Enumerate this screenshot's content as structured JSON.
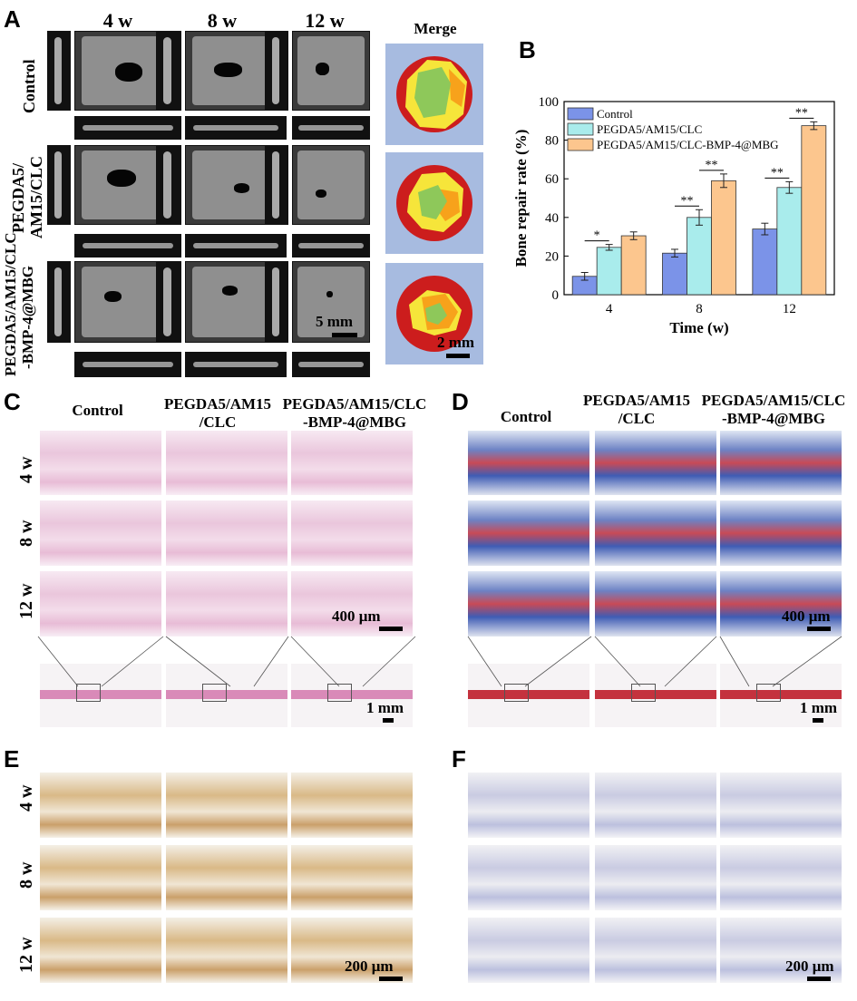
{
  "panels": {
    "A": {
      "letter": "A",
      "columns": [
        "4 w",
        "8 w",
        "12 w"
      ],
      "merge_title": "Merge",
      "rows": [
        "Control",
        "PEGDA5/\nAM15/CLC",
        "PEGDA5/AM15/CLC\n-BMP-4@MBG"
      ],
      "scale_ct": "5 mm",
      "scale_merge": "2 mm"
    },
    "B": {
      "letter": "B"
    },
    "C": {
      "letter": "C",
      "columns": [
        "Control",
        "PEGDA5/AM15\n/CLC",
        "PEGDA5/AM15/CLC\n-BMP-4@MBG"
      ],
      "rows": [
        "4 w",
        "8 w",
        "12 w"
      ],
      "scale_high": "400 μm",
      "scale_low": "1 mm"
    },
    "D": {
      "letter": "D",
      "columns": [
        "Control",
        "PEGDA5/AM15\n/CLC",
        "PEGDA5/AM15/CLC\n-BMP-4@MBG"
      ],
      "scale_high": "400 μm",
      "scale_low": "1 mm"
    },
    "E": {
      "letter": "E",
      "rows": [
        "4 w",
        "8 w",
        "12 w"
      ],
      "scale": "200 μm"
    },
    "F": {
      "letter": "F",
      "scale": "200 μm"
    }
  },
  "colors": {
    "control": "#7b93e8",
    "pegda_clc": "#a9ecec",
    "pegda_clc_bmp": "#fcc68e",
    "merge_bg": "#a7bbe0",
    "merge_red": "#cc1d1d",
    "merge_yellow": "#f6e53a",
    "merge_orange": "#f7a21b",
    "merge_green": "#8ec85a"
  },
  "chart_data": {
    "type": "bar",
    "categories": [
      "4",
      "8",
      "12"
    ],
    "xlabel": "Time (w)",
    "ylabel": "Bone repair rate (%)",
    "ylim": [
      0,
      100
    ],
    "yticks": [
      0,
      20,
      40,
      60,
      80,
      100
    ],
    "legend": "top-left",
    "series": [
      {
        "name": "Control",
        "values": [
          9.5,
          21.5,
          34
        ],
        "errors": [
          2,
          2,
          3
        ],
        "color": "#7b93e8"
      },
      {
        "name": "PEGDA5/AM15/CLC",
        "values": [
          24.5,
          40,
          55.5
        ],
        "errors": [
          1.5,
          4,
          3
        ],
        "color": "#a9ecec"
      },
      {
        "name": "PEGDA5/AM15/CLC-BMP-4@MBG",
        "values": [
          30.5,
          59,
          87.5
        ],
        "errors": [
          2,
          3.5,
          2
        ],
        "color": "#fcc68e"
      }
    ],
    "significance": [
      {
        "group": 0,
        "from": 0,
        "to": 1,
        "label": "*"
      },
      {
        "group": 1,
        "from": 0,
        "to": 1,
        "label": "**"
      },
      {
        "group": 1,
        "from": 1,
        "to": 2,
        "label": "**"
      },
      {
        "group": 2,
        "from": 0,
        "to": 1,
        "label": "**"
      },
      {
        "group": 2,
        "from": 1,
        "to": 2,
        "label": "**"
      }
    ]
  }
}
